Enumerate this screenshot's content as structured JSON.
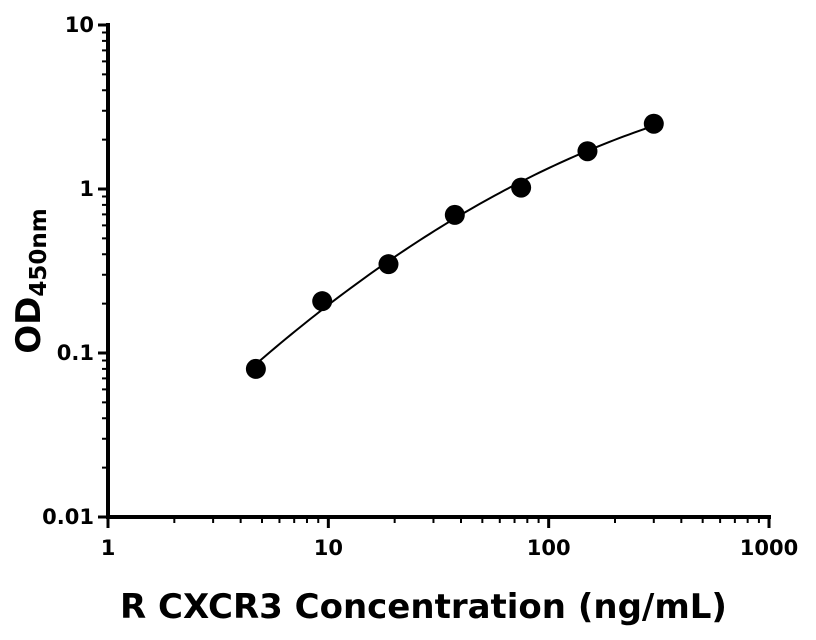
{
  "chart_data": {
    "type": "scatter",
    "title": "",
    "xlabel": "R CXCR3 Concentration (ng/mL)",
    "ylabel": {
      "main": "OD",
      "subscript": "450nm"
    },
    "x_scale": "log",
    "y_scale": "log",
    "xlim": [
      1,
      1000
    ],
    "ylim": [
      0.01,
      10
    ],
    "x_ticks": [
      {
        "value": 1,
        "label": "1"
      },
      {
        "value": 10,
        "label": "10"
      },
      {
        "value": 100,
        "label": "100"
      },
      {
        "value": 1000,
        "label": "1000"
      }
    ],
    "y_ticks": [
      {
        "value": 0.01,
        "label": "0.01"
      },
      {
        "value": 0.1,
        "label": "0.1"
      },
      {
        "value": 1,
        "label": "1"
      },
      {
        "value": 10,
        "label": "10"
      }
    ],
    "grid": false,
    "legend": "none",
    "series": [
      {
        "points": [
          {
            "x": 4.69,
            "y": 0.08
          },
          {
            "x": 9.38,
            "y": 0.207
          },
          {
            "x": 18.75,
            "y": 0.348
          },
          {
            "x": 37.5,
            "y": 0.695
          },
          {
            "x": 75,
            "y": 1.02
          },
          {
            "x": 150,
            "y": 1.7
          },
          {
            "x": 300,
            "y": 2.5
          }
        ],
        "fit_curve": true
      }
    ],
    "colors": {
      "points": "#000000",
      "curve": "#000000",
      "axes": "#000000"
    }
  }
}
